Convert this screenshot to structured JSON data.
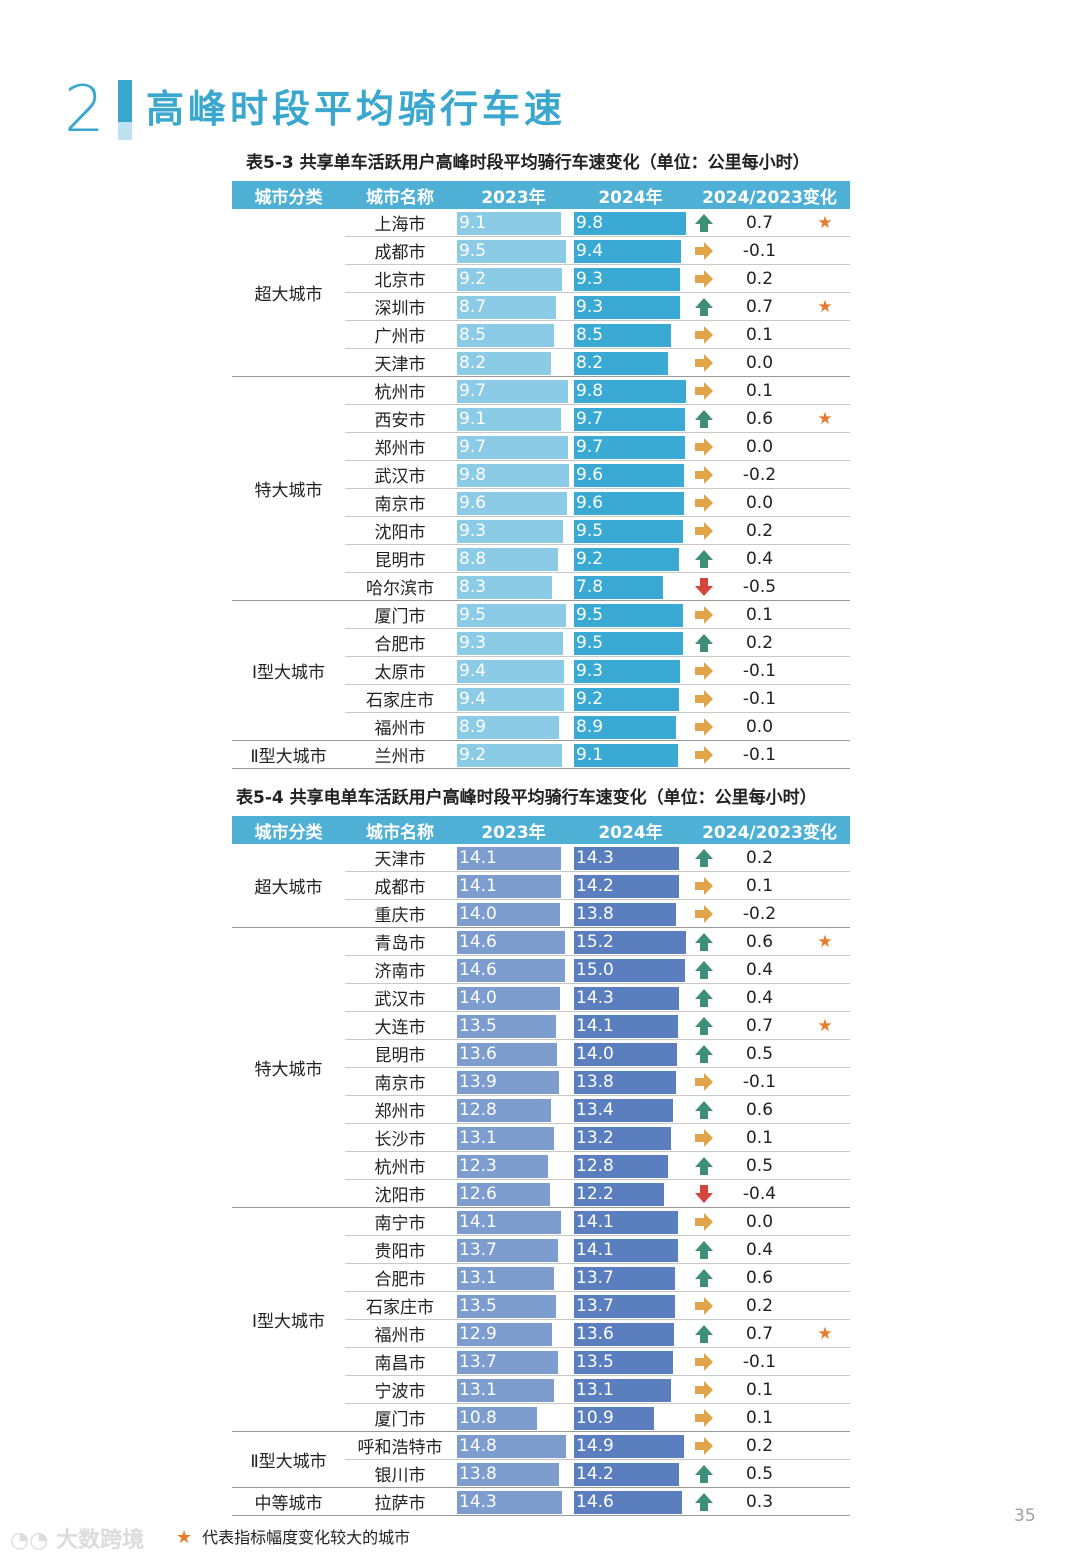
{
  "section": {
    "number": "2",
    "title": "高峰时段平均骑行车速"
  },
  "colors": {
    "accent": "#3aa7cf",
    "up": "#3f8f78",
    "flat": "#e0a54a",
    "down": "#d6453b",
    "star": "#e67d2e"
  },
  "table1": {
    "caption": "表5-3 共享单车活跃用户高峰时段平均骑行车速变化（单位：公里每小时）",
    "headers": [
      "城市分类",
      "城市名称",
      "2023年",
      "2024年",
      "2024/2023变化"
    ],
    "groups": [
      {
        "category": "超大城市",
        "rows": [
          {
            "city": "上海市",
            "v2023": "9.1",
            "v2024": "9.8",
            "trend": "up",
            "change": "0.7",
            "star": "★"
          },
          {
            "city": "成都市",
            "v2023": "9.5",
            "v2024": "9.4",
            "trend": "flat",
            "change": "-0.1",
            "star": ""
          },
          {
            "city": "北京市",
            "v2023": "9.2",
            "v2024": "9.3",
            "trend": "flat",
            "change": "0.2",
            "star": ""
          },
          {
            "city": "深圳市",
            "v2023": "8.7",
            "v2024": "9.3",
            "trend": "up",
            "change": "0.7",
            "star": "★"
          },
          {
            "city": "广州市",
            "v2023": "8.5",
            "v2024": "8.5",
            "trend": "flat",
            "change": "0.1",
            "star": ""
          },
          {
            "city": "天津市",
            "v2023": "8.2",
            "v2024": "8.2",
            "trend": "flat",
            "change": "0.0",
            "star": ""
          }
        ]
      },
      {
        "category": "特大城市",
        "rows": [
          {
            "city": "杭州市",
            "v2023": "9.7",
            "v2024": "9.8",
            "trend": "flat",
            "change": "0.1",
            "star": ""
          },
          {
            "city": "西安市",
            "v2023": "9.1",
            "v2024": "9.7",
            "trend": "up",
            "change": "0.6",
            "star": "★"
          },
          {
            "city": "郑州市",
            "v2023": "9.7",
            "v2024": "9.7",
            "trend": "flat",
            "change": "0.0",
            "star": ""
          },
          {
            "city": "武汉市",
            "v2023": "9.8",
            "v2024": "9.6",
            "trend": "flat",
            "change": "-0.2",
            "star": ""
          },
          {
            "city": "南京市",
            "v2023": "9.6",
            "v2024": "9.6",
            "trend": "flat",
            "change": "0.0",
            "star": ""
          },
          {
            "city": "沈阳市",
            "v2023": "9.3",
            "v2024": "9.5",
            "trend": "flat",
            "change": "0.2",
            "star": ""
          },
          {
            "city": "昆明市",
            "v2023": "8.8",
            "v2024": "9.2",
            "trend": "up",
            "change": "0.4",
            "star": ""
          },
          {
            "city": "哈尔滨市",
            "v2023": "8.3",
            "v2024": "7.8",
            "trend": "down",
            "change": "-0.5",
            "star": ""
          }
        ]
      },
      {
        "category": "Ⅰ型大城市",
        "rows": [
          {
            "city": "厦门市",
            "v2023": "9.5",
            "v2024": "9.5",
            "trend": "flat",
            "change": "0.1",
            "star": ""
          },
          {
            "city": "合肥市",
            "v2023": "9.3",
            "v2024": "9.5",
            "trend": "up",
            "change": "0.2",
            "star": ""
          },
          {
            "city": "太原市",
            "v2023": "9.4",
            "v2024": "9.3",
            "trend": "flat",
            "change": "-0.1",
            "star": ""
          },
          {
            "city": "石家庄市",
            "v2023": "9.4",
            "v2024": "9.2",
            "trend": "flat",
            "change": "-0.1",
            "star": ""
          },
          {
            "city": "福州市",
            "v2023": "8.9",
            "v2024": "8.9",
            "trend": "flat",
            "change": "0.0",
            "star": ""
          }
        ]
      },
      {
        "category": "Ⅱ型大城市",
        "rows": [
          {
            "city": "兰州市",
            "v2023": "9.2",
            "v2024": "9.1",
            "trend": "flat",
            "change": "-0.1",
            "star": ""
          }
        ]
      }
    ]
  },
  "table2": {
    "caption": "表5-4 共享电单车活跃用户高峰时段平均骑行车速变化（单位：公里每小时）",
    "headers": [
      "城市分类",
      "城市名称",
      "2023年",
      "2024年",
      "2024/2023变化"
    ],
    "groups": [
      {
        "category": "超大城市",
        "rows": [
          {
            "city": "天津市",
            "v2023": "14.1",
            "v2024": "14.3",
            "trend": "up",
            "change": "0.2",
            "star": ""
          },
          {
            "city": "成都市",
            "v2023": "14.1",
            "v2024": "14.2",
            "trend": "flat",
            "change": "0.1",
            "star": ""
          },
          {
            "city": "重庆市",
            "v2023": "14.0",
            "v2024": "13.8",
            "trend": "flat",
            "change": "-0.2",
            "star": ""
          }
        ]
      },
      {
        "category": "特大城市",
        "rows": [
          {
            "city": "青岛市",
            "v2023": "14.6",
            "v2024": "15.2",
            "trend": "up",
            "change": "0.6",
            "star": "★"
          },
          {
            "city": "济南市",
            "v2023": "14.6",
            "v2024": "15.0",
            "trend": "up",
            "change": "0.4",
            "star": ""
          },
          {
            "city": "武汉市",
            "v2023": "14.0",
            "v2024": "14.3",
            "trend": "up",
            "change": "0.4",
            "star": ""
          },
          {
            "city": "大连市",
            "v2023": "13.5",
            "v2024": "14.1",
            "trend": "up",
            "change": "0.7",
            "star": "★"
          },
          {
            "city": "昆明市",
            "v2023": "13.6",
            "v2024": "14.0",
            "trend": "up",
            "change": "0.5",
            "star": ""
          },
          {
            "city": "南京市",
            "v2023": "13.9",
            "v2024": "13.8",
            "trend": "flat",
            "change": "-0.1",
            "star": ""
          },
          {
            "city": "郑州市",
            "v2023": "12.8",
            "v2024": "13.4",
            "trend": "up",
            "change": "0.6",
            "star": ""
          },
          {
            "city": "长沙市",
            "v2023": "13.1",
            "v2024": "13.2",
            "trend": "flat",
            "change": "0.1",
            "star": ""
          },
          {
            "city": "杭州市",
            "v2023": "12.3",
            "v2024": "12.8",
            "trend": "up",
            "change": "0.5",
            "star": ""
          },
          {
            "city": "沈阳市",
            "v2023": "12.6",
            "v2024": "12.2",
            "trend": "down",
            "change": "-0.4",
            "star": ""
          }
        ]
      },
      {
        "category": "Ⅰ型大城市",
        "rows": [
          {
            "city": "南宁市",
            "v2023": "14.1",
            "v2024": "14.1",
            "trend": "flat",
            "change": "0.0",
            "star": ""
          },
          {
            "city": "贵阳市",
            "v2023": "13.7",
            "v2024": "14.1",
            "trend": "up",
            "change": "0.4",
            "star": ""
          },
          {
            "city": "合肥市",
            "v2023": "13.1",
            "v2024": "13.7",
            "trend": "up",
            "change": "0.6",
            "star": ""
          },
          {
            "city": "石家庄市",
            "v2023": "13.5",
            "v2024": "13.7",
            "trend": "flat",
            "change": "0.2",
            "star": ""
          },
          {
            "city": "福州市",
            "v2023": "12.9",
            "v2024": "13.6",
            "trend": "up",
            "change": "0.7",
            "star": "★"
          },
          {
            "city": "南昌市",
            "v2023": "13.7",
            "v2024": "13.5",
            "trend": "flat",
            "change": "-0.1",
            "star": ""
          },
          {
            "city": "宁波市",
            "v2023": "13.1",
            "v2024": "13.1",
            "trend": "flat",
            "change": "0.1",
            "star": ""
          },
          {
            "city": "厦门市",
            "v2023": "10.8",
            "v2024": "10.9",
            "trend": "flat",
            "change": "0.1",
            "star": ""
          }
        ]
      },
      {
        "category": "Ⅱ型大城市",
        "rows": [
          {
            "city": "呼和浩特市",
            "v2023": "14.8",
            "v2024": "14.9",
            "trend": "flat",
            "change": "0.2",
            "star": ""
          },
          {
            "city": "银川市",
            "v2023": "13.8",
            "v2024": "14.2",
            "trend": "up",
            "change": "0.5",
            "star": ""
          }
        ]
      },
      {
        "category": "中等城市",
        "rows": [
          {
            "city": "拉萨市",
            "v2023": "14.3",
            "v2024": "14.6",
            "trend": "up",
            "change": "0.3",
            "star": ""
          }
        ]
      }
    ]
  },
  "footnote": {
    "star": "★",
    "text": "代表指标幅度变化较大的城市"
  },
  "logo_text": "大数跨境",
  "page_number": "35"
}
